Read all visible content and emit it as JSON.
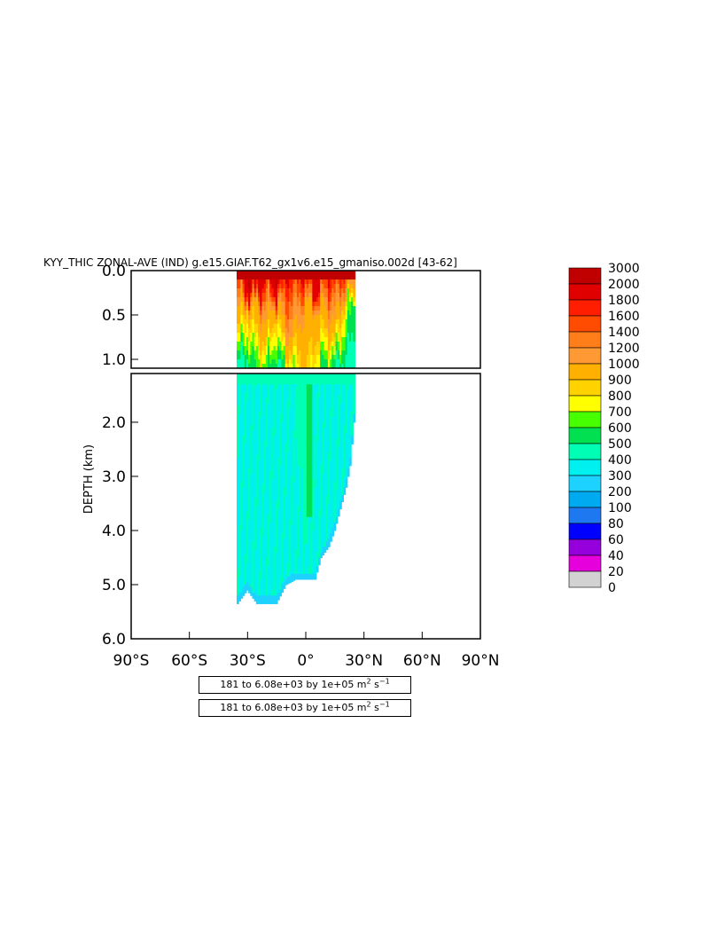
{
  "chart_data": {
    "type": "heatmap",
    "title": "KYY_THIC ZONAL-AVE (IND) g.e15.GIAF.T62_gx1v6.e15_gmaniso.002d [43-62]",
    "ylabel": "DEPTH (km)",
    "xlabel": "",
    "xlim": [
      -90,
      90
    ],
    "upper_panel": {
      "ylim": [
        0.0,
        1.1
      ],
      "yticks": [
        0.0,
        0.5,
        1.0
      ],
      "ytick_labels": [
        "0.0",
        "0.5",
        "1.0"
      ]
    },
    "lower_panel": {
      "ylim": [
        1.1,
        6.0
      ],
      "yticks": [
        2.0,
        3.0,
        4.0,
        5.0,
        6.0
      ],
      "ytick_labels": [
        "2.0",
        "3.0",
        "4.0",
        "5.0",
        "6.0"
      ]
    },
    "xticks": [
      -90,
      -60,
      -30,
      0,
      30,
      60,
      90
    ],
    "xtick_labels": [
      "90°S",
      "60°S",
      "30°S",
      "0°",
      "30°N",
      "60°N",
      "90°N"
    ],
    "grid": false,
    "legend": "right",
    "colorbar": {
      "labels": [
        "3000",
        "2000",
        "1800",
        "1600",
        "1400",
        "1200",
        "1000",
        "900",
        "800",
        "700",
        "600",
        "500",
        "400",
        "300",
        "200",
        "100",
        "80",
        "60",
        "40",
        "20",
        "0"
      ],
      "colors": [
        "#c00000",
        "#e00000",
        "#ff1e00",
        "#ff4c00",
        "#ff7e1a",
        "#ff9933",
        "#ffb000",
        "#ffd200",
        "#ffff00",
        "#46ff00",
        "#00e050",
        "#00ffb4",
        "#00f0f0",
        "#1ed2ff",
        "#00aaf0",
        "#1e78f0",
        "#0000ff",
        "#9600dc",
        "#e600dc",
        "#d2d2d2",
        "#6e6e6e"
      ]
    },
    "field": {
      "lat_range": [
        -35,
        25
      ],
      "surface_value": 3000,
      "upper_columns": [
        {
          "lat": -34,
          "surface_top": 2000,
          "upper_mid": 1200,
          "base": 500
        },
        {
          "lat": -30,
          "surface_top": 3000,
          "upper_mid": 1000,
          "base": 500
        },
        {
          "lat": -25,
          "surface_top": 3000,
          "upper_mid": 1200,
          "base": 700
        },
        {
          "lat": -20,
          "surface_top": 2000,
          "upper_mid": 1400,
          "base": 700
        },
        {
          "lat": -15,
          "surface_top": 3000,
          "upper_mid": 1000,
          "base": 500
        },
        {
          "lat": -10,
          "surface_top": 2000,
          "upper_mid": 1600,
          "base": 700
        },
        {
          "lat": -5,
          "surface_top": 2000,
          "upper_mid": 1400,
          "base": 800
        },
        {
          "lat": 0,
          "surface_top": 2000,
          "upper_mid": 1200,
          "base": 1000
        },
        {
          "lat": 5,
          "surface_top": 3000,
          "upper_mid": 1200,
          "base": 800
        },
        {
          "lat": 10,
          "surface_top": 2000,
          "upper_mid": 1200,
          "base": 600
        },
        {
          "lat": 15,
          "surface_top": 2000,
          "upper_mid": 1400,
          "base": 600
        },
        {
          "lat": 20,
          "surface_top": 1800,
          "upper_mid": 900,
          "base": 500
        },
        {
          "lat": 24,
          "surface_top": 1600,
          "upper_mid": 700,
          "base": 500
        }
      ],
      "bottom_depth": [
        {
          "lat": -35,
          "depth": 5.35
        },
        {
          "lat": -30,
          "depth": 5.1
        },
        {
          "lat": -25,
          "depth": 5.35
        },
        {
          "lat": -15,
          "depth": 5.35
        },
        {
          "lat": -10,
          "depth": 5.0
        },
        {
          "lat": -5,
          "depth": 4.9
        },
        {
          "lat": 0,
          "depth": 4.9
        },
        {
          "lat": 5,
          "depth": 4.9
        },
        {
          "lat": 8,
          "depth": 4.5
        },
        {
          "lat": 12,
          "depth": 4.3
        },
        {
          "lat": 15,
          "depth": 4.0
        },
        {
          "lat": 18,
          "depth": 3.6
        },
        {
          "lat": 21,
          "depth": 3.2
        },
        {
          "lat": 23,
          "depth": 2.8
        },
        {
          "lat": 25,
          "depth": 2.0
        }
      ],
      "deep_plumes": [
        {
          "lat": 0,
          "top": 1.1,
          "bottom": 4.2,
          "value": 500
        },
        {
          "lat": 2,
          "top": 1.3,
          "bottom": 3.7,
          "value": 600
        },
        {
          "lat": -3,
          "top": 1.1,
          "bottom": 2.8,
          "value": 500
        }
      ]
    }
  },
  "info_boxes": {
    "box1": "181 to 6.08e+03 by 1e+05 m",
    "box2": "181 to 6.08e+03 by 1e+05 m",
    "unit_tail": "s",
    "sup2": "2",
    "supm1": "−1"
  }
}
